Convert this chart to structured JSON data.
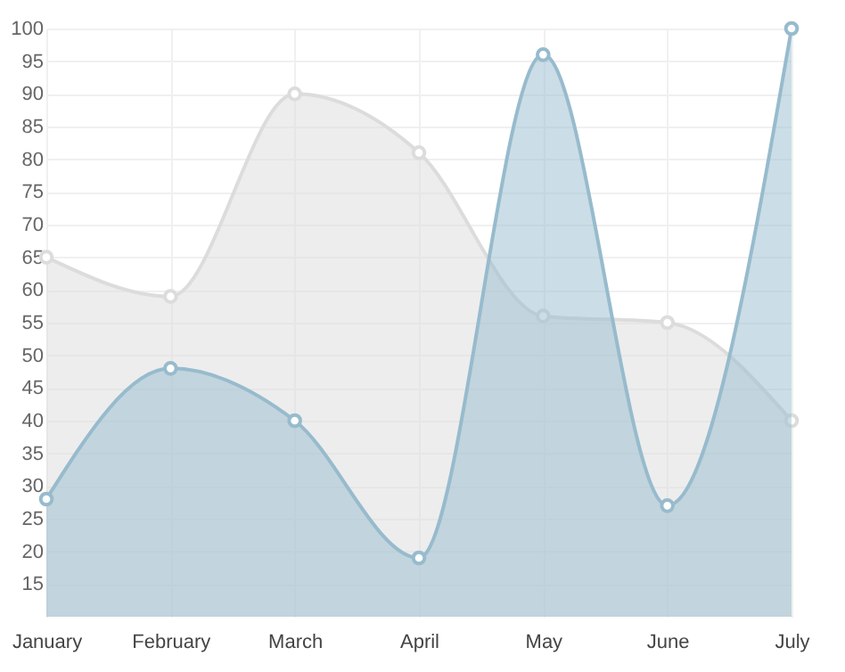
{
  "chart_data": {
    "type": "area",
    "categories": [
      "January",
      "February",
      "March",
      "April",
      "May",
      "June",
      "July"
    ],
    "series": [
      {
        "color": "#dcdcdc",
        "values": [
          65,
          59,
          90,
          81,
          56,
          55,
          40
        ]
      },
      {
        "color": "#97bbcd",
        "values": [
          28,
          48,
          40,
          19,
          96,
          27,
          100
        ]
      }
    ],
    "ylim": [
      10,
      100
    ],
    "yticks": [
      15,
      20,
      25,
      30,
      35,
      40,
      45,
      50,
      55,
      60,
      65,
      70,
      75,
      80,
      85,
      90,
      95,
      100
    ],
    "grid": true,
    "marker": "circle"
  }
}
